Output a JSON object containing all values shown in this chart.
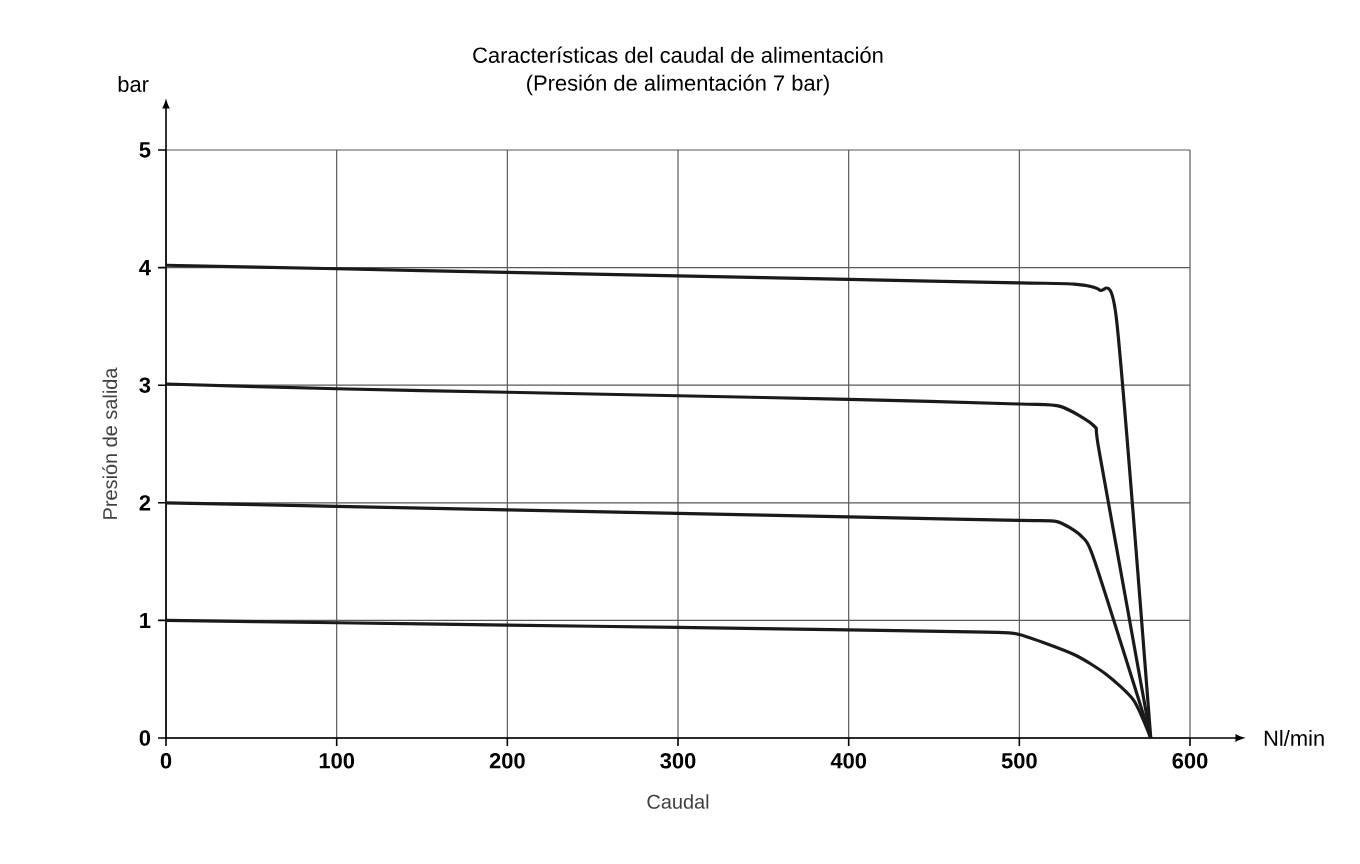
{
  "chart_data": {
    "type": "line",
    "title": "Características del caudal de alimentación",
    "subtitle": "(Presión de alimentación 7 bar)",
    "xlabel": "Caudal",
    "ylabel": "Presión de salida",
    "annotations": [
      "bar",
      "Nl/min"
    ],
    "xlim": [
      0,
      600
    ],
    "ylim": [
      0,
      5
    ],
    "xticks": [
      0,
      100,
      200,
      300,
      400,
      500,
      600
    ],
    "yticks": [
      0,
      1,
      2,
      3,
      4,
      5
    ],
    "grid": true,
    "marker": "none",
    "line_style": "solid",
    "series": [
      {
        "color": "#1a1a1a",
        "x": [
          0,
          100,
          200,
          300,
          400,
          480,
          500,
          532,
          551,
          567,
          577
        ],
        "values": [
          1.0,
          0.98,
          0.96,
          0.94,
          0.92,
          0.9,
          0.88,
          0.71,
          0.54,
          0.32,
          0
        ]
      },
      {
        "color": "#1a1a1a",
        "x": [
          0,
          100,
          200,
          300,
          400,
          500,
          522,
          536,
          544,
          577
        ],
        "values": [
          2.0,
          1.97,
          1.94,
          1.91,
          1.88,
          1.85,
          1.84,
          1.72,
          1.51,
          0
        ]
      },
      {
        "color": "#1a1a1a",
        "x": [
          0,
          100,
          200,
          300,
          400,
          500,
          524,
          544,
          547,
          577
        ],
        "values": [
          3.01,
          2.97,
          2.94,
          2.91,
          2.88,
          2.84,
          2.82,
          2.65,
          2.42,
          0
        ]
      },
      {
        "color": "#1a1a1a",
        "x": [
          0,
          100,
          200,
          300,
          400,
          500,
          532,
          547,
          557,
          577
        ],
        "values": [
          4.02,
          3.99,
          3.96,
          3.93,
          3.9,
          3.87,
          3.86,
          3.81,
          3.55,
          0
        ]
      }
    ]
  }
}
